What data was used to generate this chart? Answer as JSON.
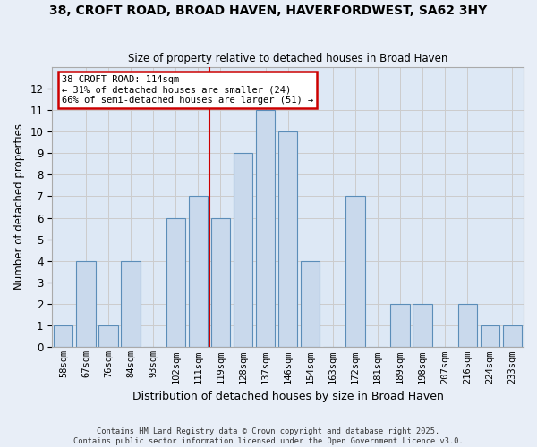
{
  "title": "38, CROFT ROAD, BROAD HAVEN, HAVERFORDWEST, SA62 3HY",
  "subtitle": "Size of property relative to detached houses in Broad Haven",
  "xlabel": "Distribution of detached houses by size in Broad Haven",
  "ylabel": "Number of detached properties",
  "bar_labels": [
    "58sqm",
    "67sqm",
    "76sqm",
    "84sqm",
    "93sqm",
    "102sqm",
    "111sqm",
    "119sqm",
    "128sqm",
    "137sqm",
    "146sqm",
    "154sqm",
    "163sqm",
    "172sqm",
    "181sqm",
    "189sqm",
    "198sqm",
    "207sqm",
    "216sqm",
    "224sqm",
    "233sqm"
  ],
  "bar_values": [
    1,
    4,
    1,
    4,
    0,
    6,
    7,
    6,
    9,
    11,
    10,
    4,
    0,
    7,
    0,
    2,
    2,
    0,
    2,
    1,
    1
  ],
  "bar_color": "#c9d9ec",
  "bar_edge_color": "#5b8db8",
  "property_line_x": 6.5,
  "annotation_title": "38 CROFT ROAD: 114sqm",
  "annotation_line1": "← 31% of detached houses are smaller (24)",
  "annotation_line2": "66% of semi-detached houses are larger (51) →",
  "annotation_box_color": "#ffffff",
  "annotation_box_edge": "#cc0000",
  "vline_color": "#cc0000",
  "ylim": [
    0,
    13
  ],
  "yticks": [
    0,
    1,
    2,
    3,
    4,
    5,
    6,
    7,
    8,
    9,
    10,
    11,
    12,
    13
  ],
  "grid_color": "#cccccc",
  "background_color": "#dde8f5",
  "footer_line1": "Contains HM Land Registry data © Crown copyright and database right 2025.",
  "footer_line2": "Contains public sector information licensed under the Open Government Licence v3.0."
}
